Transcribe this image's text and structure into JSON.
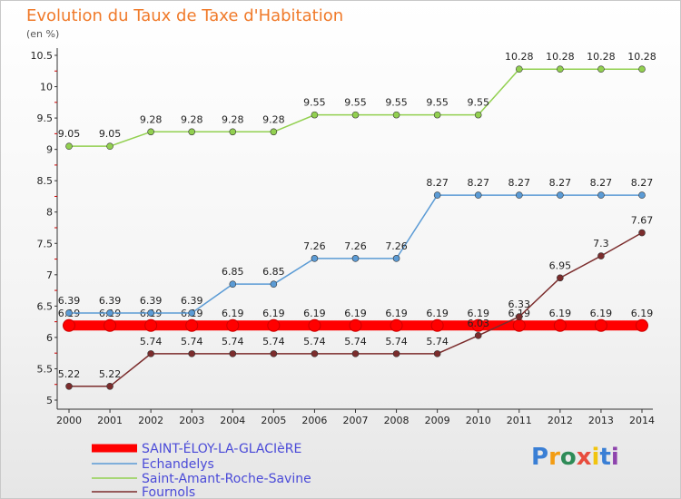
{
  "header": {
    "title": "Evolution du Taux de Taxe d'Habitation",
    "subtitle": "(en %)"
  },
  "logo": {
    "text": "Proxiti"
  },
  "chart_data": {
    "type": "line",
    "title": "Evolution du Taux de Taxe d'Habitation",
    "ylabel": "(en %)",
    "xlabel": "",
    "x": [
      2000,
      2001,
      2002,
      2003,
      2004,
      2005,
      2006,
      2007,
      2008,
      2009,
      2010,
      2011,
      2012,
      2013,
      2014
    ],
    "ylim": [
      5,
      10.5
    ],
    "yticks": [
      "5",
      "5.5",
      "6",
      "6.5",
      "7",
      "7.5",
      "8",
      "8.5",
      "9",
      "9.5",
      "10",
      "10.5"
    ],
    "grid": false,
    "legend_position": "bottom-left",
    "series": [
      {
        "name": "SAINT-ÉLOY-LA-GLACIèRE",
        "color": "#ff0000",
        "values": [
          6.19,
          6.19,
          6.19,
          6.19,
          6.19,
          6.19,
          6.19,
          6.19,
          6.19,
          6.19,
          6.19,
          6.19,
          6.19,
          6.19,
          6.19
        ]
      },
      {
        "name": "Echandelys",
        "color": "#5b9bd5",
        "values": [
          6.39,
          6.39,
          6.39,
          6.39,
          6.85,
          6.85,
          7.26,
          7.26,
          7.26,
          8.27,
          8.27,
          8.27,
          8.27,
          8.27,
          8.27
        ]
      },
      {
        "name": "Saint-Amant-Roche-Savine",
        "color": "#92d050",
        "values": [
          9.05,
          9.05,
          9.28,
          9.28,
          9.28,
          9.28,
          9.55,
          9.55,
          9.55,
          9.55,
          9.55,
          10.28,
          10.28,
          10.28,
          10.28
        ]
      },
      {
        "name": "Fournols",
        "color": "#7b2c2c",
        "values": [
          5.22,
          5.22,
          5.74,
          5.74,
          5.74,
          5.74,
          5.74,
          5.74,
          5.74,
          5.74,
          6.03,
          6.33,
          6.95,
          7.3,
          7.67
        ]
      }
    ]
  }
}
